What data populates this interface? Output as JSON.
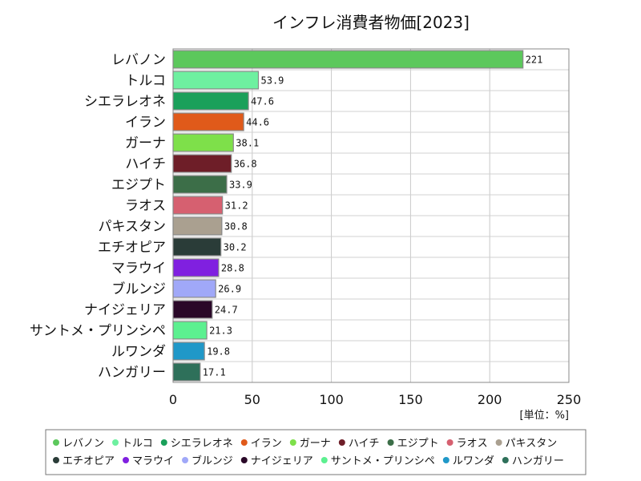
{
  "chart_data": {
    "type": "bar",
    "orientation": "horizontal",
    "title": "インフレ消費者物価[2023]",
    "unit_label": "[単位：%]",
    "xlim": [
      0,
      250
    ],
    "xticks": [
      0,
      50,
      100,
      150,
      200,
      250
    ],
    "grid": true,
    "legend_position": "bottom",
    "categories": [
      "レバノン",
      "トルコ",
      "シエラレオネ",
      "イラン",
      "ガーナ",
      "ハイチ",
      "エジプト",
      "ラオス",
      "パキスタン",
      "エチオピア",
      "マラウイ",
      "ブルンジ",
      "ナイジェリア",
      "サントメ・プリンシペ",
      "ルワンダ",
      "ハンガリー"
    ],
    "values": [
      221,
      53.9,
      47.6,
      44.6,
      38.1,
      36.8,
      33.9,
      31.2,
      30.8,
      30.2,
      28.8,
      26.9,
      24.7,
      21.3,
      19.8,
      17.1
    ],
    "value_labels": [
      "221",
      "53.9",
      "47.6",
      "44.6",
      "38.1",
      "36.8",
      "33.9",
      "31.2",
      "30.8",
      "30.2",
      "28.8",
      "26.9",
      "24.7",
      "21.3",
      "19.8",
      "17.1"
    ],
    "colors": [
      "#5cc85c",
      "#6ef0a0",
      "#1aa05a",
      "#e05a1a",
      "#7ee04a",
      "#6e1e28",
      "#3c6e48",
      "#d66070",
      "#aaa090",
      "#2a3c38",
      "#8020e0",
      "#a0a8f8",
      "#2a0828",
      "#5cf090",
      "#2098c8",
      "#2e705a"
    ]
  }
}
